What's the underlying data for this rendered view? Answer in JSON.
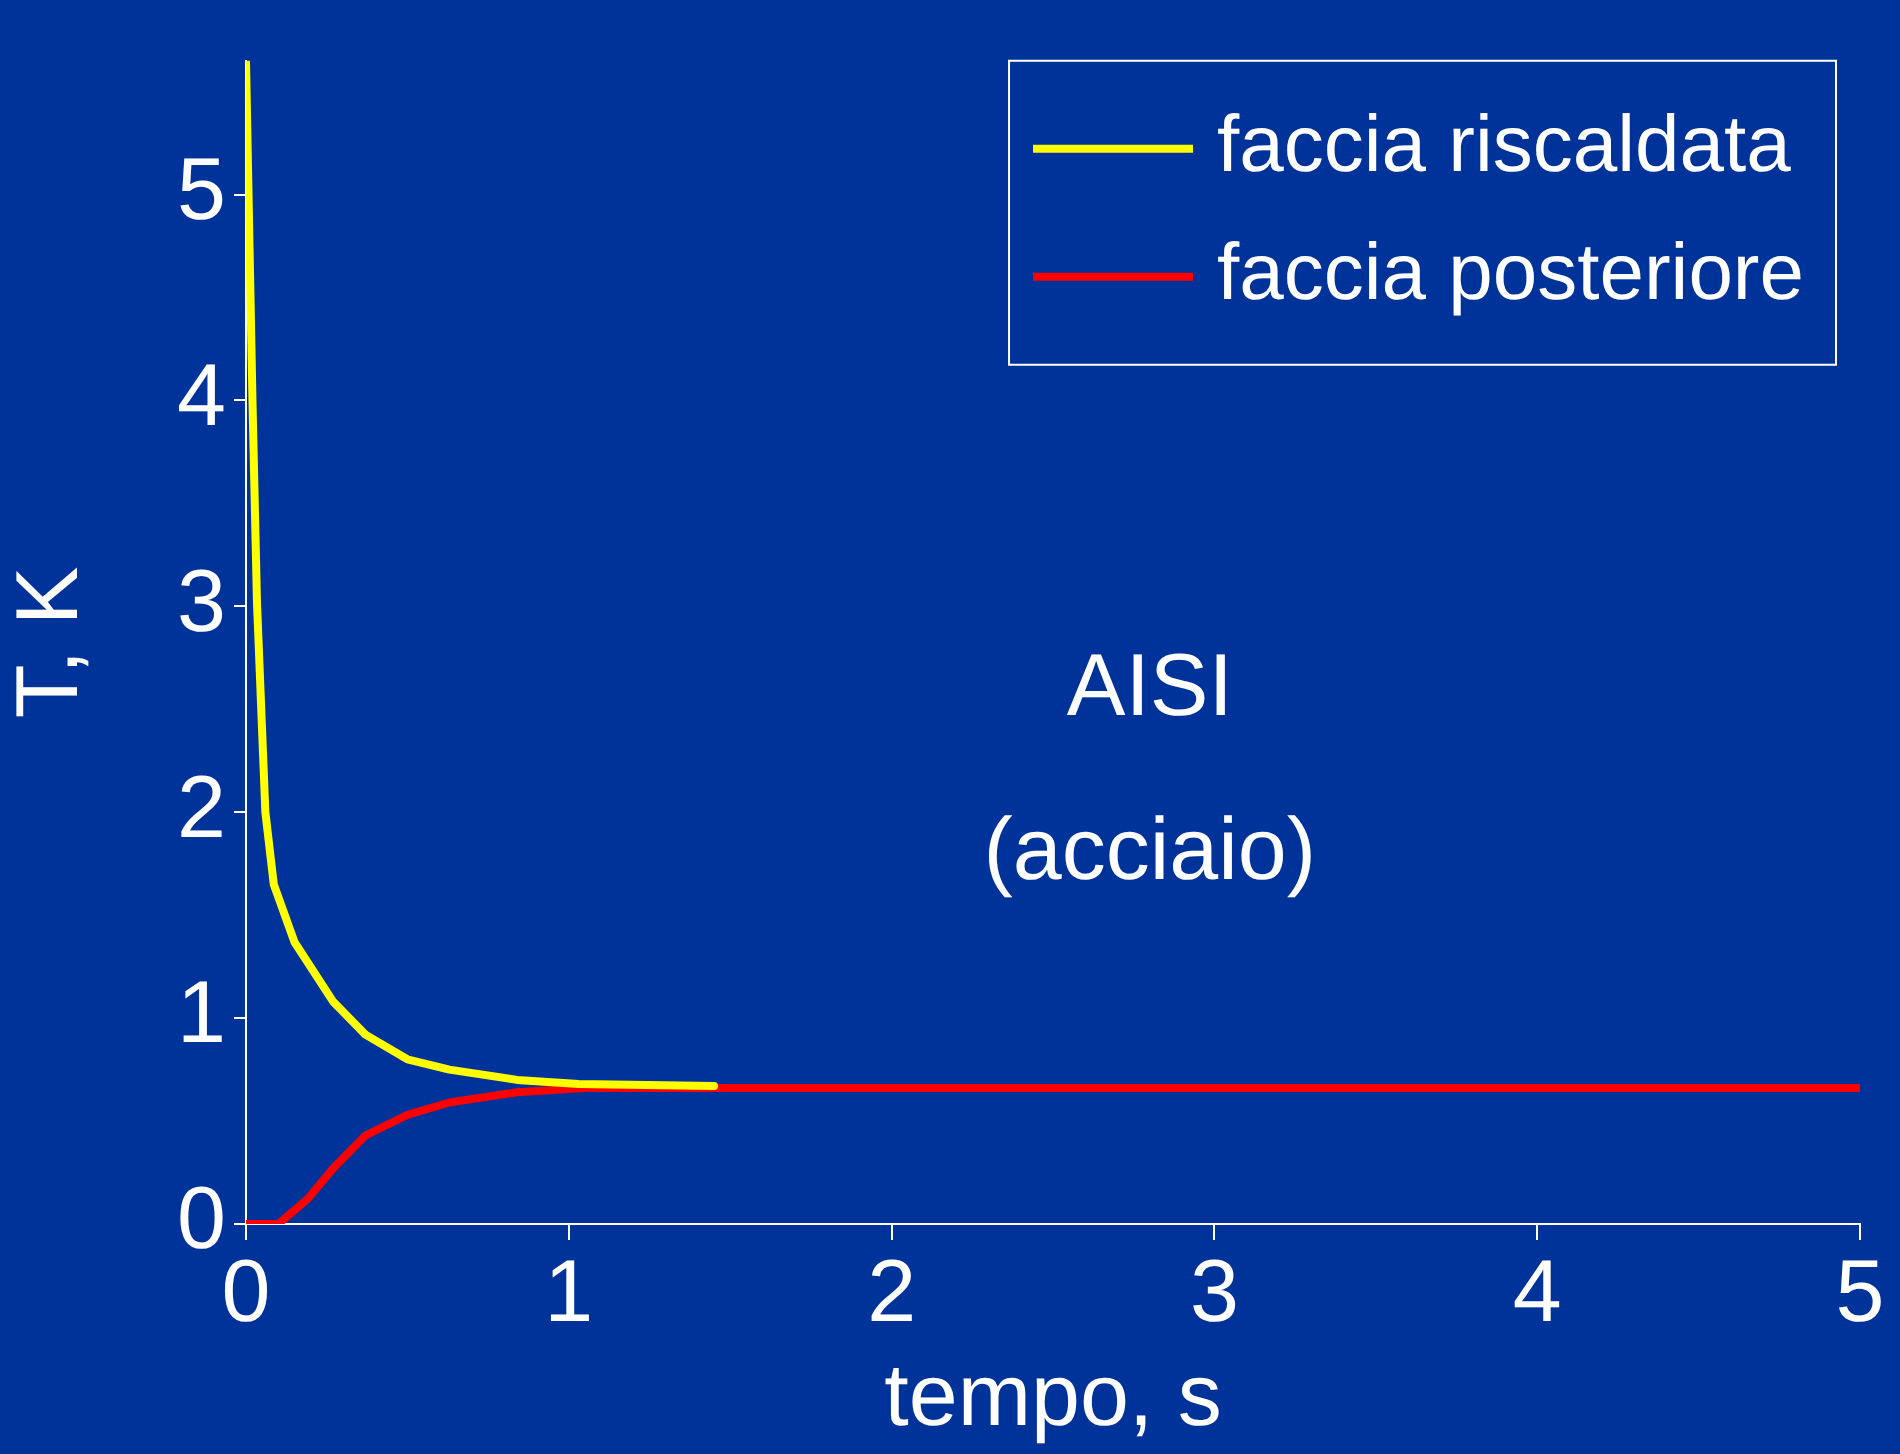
{
  "chart_data": {
    "type": "line",
    "xlabel": "tempo, s",
    "ylabel": "T, K",
    "xlim": [
      0,
      5
    ],
    "xticks": [
      0,
      1,
      2,
      3,
      4,
      5
    ],
    "ylim": [
      0,
      5.65
    ],
    "yticks": [
      0,
      1,
      2,
      3,
      4,
      5
    ],
    "grid": false,
    "legend": "top right",
    "marker": "none",
    "line_style": "solid",
    "annotations": [
      "AISI",
      "(acciaio)"
    ],
    "series": [
      {
        "name": "faccia riscaldata",
        "color": "#ffff00",
        "x": [
          0,
          0.02,
          0.034,
          0.06,
          0.086,
          0.15,
          0.27,
          0.37,
          0.5,
          0.63,
          0.84,
          1.03,
          1.45
        ],
        "values": [
          5.65,
          4.0,
          3.02,
          2.0,
          1.65,
          1.37,
          1.08,
          0.92,
          0.8,
          0.75,
          0.7,
          0.68,
          0.67
        ]
      },
      {
        "name": "faccia posteriore",
        "color": "#ff0000",
        "x": [
          0,
          0.1,
          0.19,
          0.27,
          0.37,
          0.5,
          0.63,
          0.84,
          1.05,
          5
        ],
        "values": [
          0,
          0,
          0.12,
          0.27,
          0.43,
          0.53,
          0.59,
          0.64,
          0.66,
          0.66
        ]
      }
    ]
  }
}
